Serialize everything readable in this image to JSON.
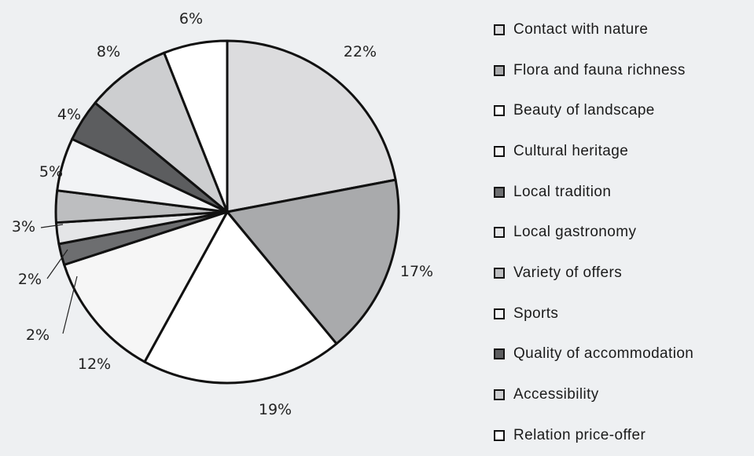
{
  "chart_data": {
    "type": "pie",
    "title": "",
    "slices": [
      {
        "label": "Contact with nature",
        "value": 22,
        "display": "22%",
        "color": "#dcdcde"
      },
      {
        "label": "Flora and fauna richness",
        "value": 17,
        "display": "17%",
        "color": "#a9aaac"
      },
      {
        "label": "Beauty of landscape",
        "value": 19,
        "display": "19%",
        "color": "#ffffff"
      },
      {
        "label": "Cultural heritage",
        "value": 12,
        "display": "12%",
        "color": "#f6f6f6"
      },
      {
        "label": "Local tradition",
        "value": 2,
        "display": "2%",
        "color": "#6d6e70"
      },
      {
        "label": "Local gastronomy",
        "value": 2,
        "display": "2%",
        "color": "#e4e5e7"
      },
      {
        "label": "Variety of offers",
        "value": 3,
        "display": "3%",
        "color": "#bdbec0"
      },
      {
        "label": "Sports",
        "value": 5,
        "display": "5%",
        "color": "#f2f3f5"
      },
      {
        "label": "Quality of accommodation",
        "value": 4,
        "display": "4%",
        "color": "#5c5d5f"
      },
      {
        "label": "Accessibility",
        "value": 8,
        "display": "8%",
        "color": "#cdced0"
      },
      {
        "label": "Relation price-offer",
        "value": 6,
        "display": "6%",
        "color": "#ffffff"
      }
    ],
    "legend_position": "right"
  }
}
